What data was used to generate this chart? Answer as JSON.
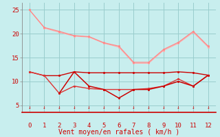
{
  "bg_color": "#c8eeee",
  "grid_color": "#99cccc",
  "xlabel": "Vent moyen/en rafales ( km/h )",
  "x": [
    0,
    1,
    2,
    3,
    4,
    5,
    6,
    7,
    8,
    9,
    10,
    11,
    12
  ],
  "ylim": [
    3.5,
    26.5
  ],
  "xlim": [
    -0.5,
    12.5
  ],
  "yticks": [
    5,
    10,
    15,
    20,
    25
  ],
  "xticks": [
    0,
    1,
    2,
    3,
    4,
    5,
    6,
    7,
    8,
    9,
    10,
    11,
    12
  ],
  "pink1": [
    25.0,
    21.2,
    20.3,
    19.5,
    19.3,
    18.0,
    17.2,
    13.8,
    13.8,
    16.5,
    18.0,
    20.3,
    17.2
  ],
  "pink2": [
    25.0,
    21.3,
    20.5,
    19.6,
    19.4,
    18.1,
    17.4,
    14.0,
    14.0,
    16.7,
    18.2,
    20.5,
    17.4
  ],
  "red1": [
    12.0,
    11.2,
    11.2,
    12.0,
    11.8,
    11.8,
    11.8,
    11.8,
    11.8,
    11.8,
    12.0,
    11.8,
    11.3
  ],
  "red2": [
    12.0,
    11.2,
    7.5,
    9.0,
    8.5,
    8.3,
    8.3,
    8.3,
    8.5,
    9.0,
    10.5,
    9.0,
    11.3
  ],
  "red3": [
    null,
    null,
    7.5,
    12.0,
    9.0,
    8.3,
    6.5,
    8.3,
    8.3,
    9.0,
    10.0,
    9.0,
    11.3
  ],
  "color_pink1": "#ffaaaa",
  "color_pink2": "#ff8888",
  "color_red1": "#cc0000",
  "color_red2": "#dd3333",
  "color_red3": "#cc0000",
  "tick_color": "#cc0000",
  "label_color": "#cc0000"
}
